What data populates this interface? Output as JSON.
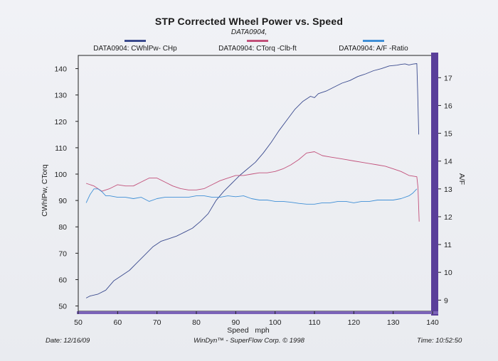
{
  "title": "STP Corrected Wheel Power vs. Speed",
  "subtitle": "DATA0904,",
  "footer": {
    "date": "Date: 12/16/09",
    "software": "WinDyn™ - SuperFlow Corp. © 1998",
    "time": "Time: 10:52:50"
  },
  "colors": {
    "power": "#3a4a8e",
    "torque": "#c2507a",
    "afr": "#3f8fd6",
    "right_bar": "#5a3f9a",
    "bottom_bar": "#7b63b8"
  },
  "chart_data": {
    "type": "line",
    "title": "STP Corrected Wheel Power vs. Speed",
    "subtitle": "DATA0904,",
    "xlabel": "Speed   mph",
    "ylabel": "CWhlPw, CTorq",
    "y2label": "A/F",
    "xlim": [
      50,
      140
    ],
    "ylim": [
      48,
      145
    ],
    "y2lim": [
      8.6,
      17.8
    ],
    "x_ticks": [
      50,
      60,
      70,
      80,
      90,
      100,
      110,
      120,
      130,
      140
    ],
    "y_ticks": [
      50,
      60,
      70,
      80,
      90,
      100,
      110,
      120,
      130,
      140
    ],
    "y2_ticks": [
      9,
      10,
      11,
      12,
      13,
      14,
      15,
      16,
      17
    ],
    "legend_position": "top",
    "grid": false,
    "series": [
      {
        "name": "DATA0904: CWhlPw- CHp",
        "axis": "left",
        "x": [
          52,
          53,
          55,
          57,
          59,
          61,
          63,
          65,
          67,
          69,
          71,
          73,
          75,
          77,
          79,
          81,
          83,
          85,
          87,
          89,
          91,
          93,
          95,
          97,
          99,
          101,
          103,
          105,
          107,
          109,
          110,
          111,
          113,
          115,
          117,
          119,
          121,
          123,
          125,
          127,
          129,
          131,
          132,
          133,
          134,
          135,
          136,
          136.2,
          136.5
        ],
        "y": [
          53,
          53.8,
          54.5,
          56,
          59.5,
          61.5,
          63.5,
          66.5,
          69.5,
          72.5,
          74.5,
          75.5,
          76.5,
          78,
          79.5,
          82,
          85,
          90,
          93.5,
          96.5,
          99.5,
          102,
          104.5,
          108,
          112,
          116.5,
          120.5,
          124.5,
          127.5,
          129.5,
          129,
          130.5,
          131.5,
          133,
          134.5,
          135.5,
          137,
          138,
          139.2,
          140,
          141,
          141.3,
          141.6,
          141.8,
          141.4,
          141.7,
          141.9,
          132,
          115
        ]
      },
      {
        "name": "DATA0904: CTorq -Clb-ft",
        "axis": "left",
        "x": [
          52,
          54,
          56,
          58,
          60,
          62,
          64,
          66,
          68,
          70,
          72,
          74,
          76,
          78,
          80,
          82,
          84,
          86,
          88,
          90,
          92,
          94,
          96,
          98,
          100,
          102,
          104,
          106,
          108,
          110,
          112,
          114,
          116,
          118,
          120,
          122,
          124,
          126,
          128,
          130,
          132,
          134,
          136,
          136.3,
          136.6
        ],
        "y": [
          96.5,
          95.5,
          93.5,
          94.5,
          96,
          95.5,
          95.5,
          97,
          98.5,
          98.5,
          97,
          95.5,
          94.5,
          94,
          94,
          94.5,
          96,
          97.5,
          98.5,
          99.5,
          99.5,
          100,
          100.5,
          100.5,
          101,
          102,
          103.5,
          105.5,
          108,
          108.5,
          107,
          106.5,
          106,
          105.5,
          105,
          104.5,
          104,
          103.5,
          103,
          102,
          101,
          99.5,
          99,
          95,
          82
        ]
      },
      {
        "name": "DATA0904:  A/F  -Ratio",
        "axis": "right",
        "x": [
          52,
          53,
          54,
          55,
          56,
          57,
          58,
          60,
          62,
          64,
          66,
          68,
          70,
          72,
          74,
          76,
          78,
          80,
          82,
          84,
          86,
          88,
          90,
          92,
          94,
          96,
          98,
          100,
          102,
          104,
          106,
          108,
          110,
          112,
          114,
          116,
          118,
          120,
          122,
          124,
          126,
          128,
          130,
          132,
          134,
          135,
          136
        ],
        "y": [
          12.5,
          12.8,
          13.0,
          13.0,
          12.9,
          12.75,
          12.75,
          12.7,
          12.7,
          12.65,
          12.7,
          12.55,
          12.65,
          12.7,
          12.7,
          12.7,
          12.7,
          12.75,
          12.75,
          12.7,
          12.7,
          12.75,
          12.72,
          12.75,
          12.65,
          12.6,
          12.6,
          12.55,
          12.55,
          12.52,
          12.48,
          12.45,
          12.45,
          12.5,
          12.5,
          12.55,
          12.55,
          12.5,
          12.55,
          12.55,
          12.6,
          12.6,
          12.6,
          12.65,
          12.75,
          12.85,
          13.0
        ]
      }
    ]
  }
}
